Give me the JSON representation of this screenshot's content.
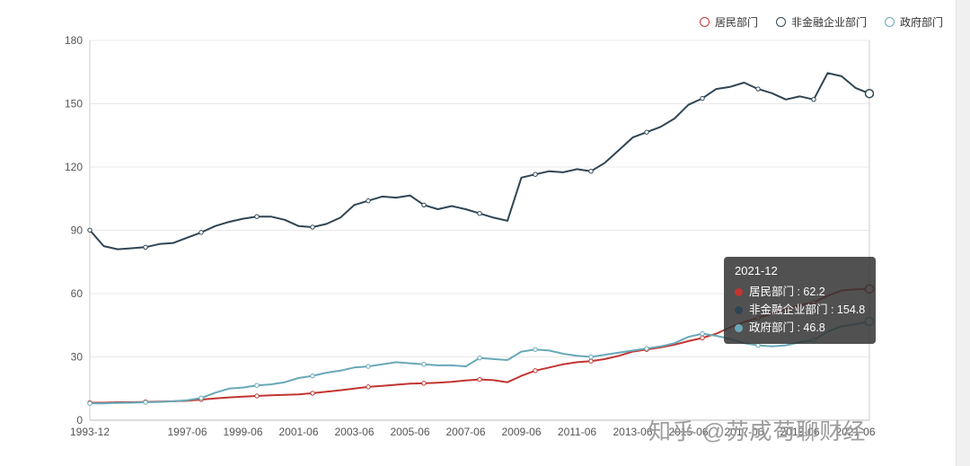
{
  "watermark": {
    "text": "知乎 @苏成苟聊财经"
  },
  "chart_data": {
    "type": "line",
    "title": "",
    "xlabel": "",
    "ylabel": "",
    "ylim": [
      0,
      180
    ],
    "yticks": [
      0,
      30,
      60,
      90,
      120,
      150,
      180
    ],
    "grid": true,
    "legend_position": "top-right",
    "x": [
      "1993-12",
      "1994-06",
      "1994-12",
      "1995-06",
      "1995-12",
      "1996-06",
      "1996-12",
      "1997-06",
      "1997-12",
      "1998-06",
      "1998-12",
      "1999-06",
      "1999-12",
      "2000-06",
      "2000-12",
      "2001-06",
      "2001-12",
      "2002-06",
      "2002-12",
      "2003-06",
      "2003-12",
      "2004-06",
      "2004-12",
      "2005-06",
      "2005-12",
      "2006-06",
      "2006-12",
      "2007-06",
      "2007-12",
      "2008-06",
      "2008-12",
      "2009-06",
      "2009-12",
      "2010-06",
      "2010-12",
      "2011-06",
      "2011-12",
      "2012-06",
      "2012-12",
      "2013-06",
      "2013-12",
      "2014-06",
      "2014-12",
      "2015-06",
      "2015-12",
      "2016-06",
      "2016-12",
      "2017-06",
      "2017-12",
      "2018-06",
      "2018-12",
      "2019-06",
      "2019-12",
      "2020-06",
      "2020-12",
      "2021-06",
      "2021-12"
    ],
    "x_tick_labels": [
      {
        "text": "1993-12",
        "index": 0
      },
      {
        "text": "1997-06",
        "index": 7
      },
      {
        "text": "1999-06",
        "index": 11
      },
      {
        "text": "2001-06",
        "index": 15
      },
      {
        "text": "2003-06",
        "index": 19
      },
      {
        "text": "2005-06",
        "index": 23
      },
      {
        "text": "2007-06",
        "index": 27
      },
      {
        "text": "2009-06",
        "index": 31
      },
      {
        "text": "2011-06",
        "index": 35
      },
      {
        "text": "2013-06",
        "index": 39
      },
      {
        "text": "2015-06",
        "index": 43
      },
      {
        "text": "2017-06",
        "index": 47
      },
      {
        "text": "2019-06",
        "index": 51
      },
      {
        "text": "2021-06",
        "index": 55
      }
    ],
    "series": [
      {
        "name": "居民部门",
        "color": "#c23531",
        "values": [
          8.3,
          8.3,
          8.5,
          8.5,
          8.7,
          8.8,
          9.0,
          9.2,
          9.8,
          10.3,
          10.8,
          11.2,
          11.5,
          11.8,
          12.0,
          12.2,
          12.8,
          13.5,
          14.2,
          15.0,
          15.8,
          16.3,
          16.8,
          17.3,
          17.5,
          17.8,
          18.2,
          18.8,
          19.3,
          19.0,
          18.0,
          21.0,
          23.5,
          25.0,
          26.5,
          27.5,
          28.0,
          29.0,
          30.5,
          32.5,
          33.5,
          34.5,
          35.8,
          37.5,
          39.0,
          41.0,
          44.0,
          46.5,
          48.5,
          50.5,
          52.5,
          54.5,
          55.8,
          59.0,
          61.5,
          62.0,
          62.2
        ]
      },
      {
        "name": "非金融企业部门",
        "color": "#2f4554",
        "values": [
          90.1,
          82.5,
          81.0,
          81.5,
          82.0,
          83.5,
          84.0,
          86.5,
          89.0,
          92.0,
          94.0,
          95.5,
          96.5,
          96.5,
          95.0,
          92.0,
          91.5,
          93.0,
          96.0,
          102.0,
          104.0,
          106.0,
          105.5,
          106.5,
          102.0,
          100.0,
          101.5,
          100.0,
          98.0,
          96.0,
          94.5,
          115.0,
          116.5,
          118.0,
          117.5,
          119.0,
          118.0,
          122.0,
          128.0,
          134.0,
          136.5,
          139.0,
          143.0,
          149.5,
          152.5,
          157.0,
          158.0,
          160.0,
          157.0,
          155.0,
          152.0,
          153.5,
          152.0,
          164.5,
          163.0,
          157.5,
          154.8
        ]
      },
      {
        "name": "政府部门",
        "color": "#69a8b8",
        "values": [
          8.0,
          8.0,
          8.2,
          8.3,
          8.5,
          8.7,
          9.0,
          9.5,
          10.5,
          13.0,
          15.0,
          15.5,
          16.5,
          17.0,
          18.0,
          20.0,
          21.0,
          22.5,
          23.5,
          25.0,
          25.5,
          26.5,
          27.5,
          27.0,
          26.5,
          26.0,
          26.0,
          25.5,
          29.5,
          29.0,
          28.5,
          32.5,
          33.5,
          33.0,
          31.5,
          30.5,
          30.0,
          31.0,
          32.0,
          33.0,
          34.0,
          35.0,
          36.5,
          39.5,
          41.0,
          40.0,
          38.5,
          36.5,
          35.5,
          35.0,
          35.5,
          37.0,
          38.0,
          42.0,
          44.5,
          45.5,
          46.8
        ]
      }
    ],
    "tooltip": {
      "title": "2021-12",
      "rows": [
        {
          "label": "居民部门",
          "value": "62.2",
          "text": "居民部门 : 62.2"
        },
        {
          "label": "非金融企业部门",
          "value": "154.8",
          "text": "非金融企业部门 : 154.8"
        },
        {
          "label": "政府部门",
          "value": "46.8",
          "text": "政府部门 : 46.8"
        }
      ]
    }
  }
}
